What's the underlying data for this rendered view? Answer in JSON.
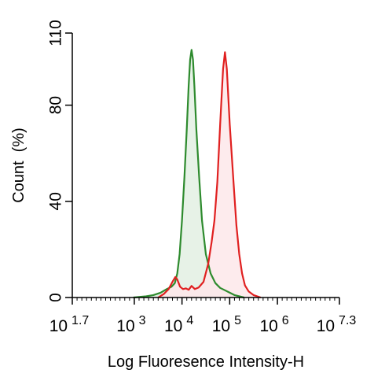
{
  "chart_data": {
    "type": "area",
    "xlabel": "Log Fluoresence Intensity-H",
    "ylabel": "Count  (%)",
    "x_scale": "log",
    "xlim_exponent": [
      1.7,
      7.3
    ],
    "ylim": [
      0,
      110
    ],
    "x_ticks": [
      {
        "base": "10",
        "exp": "1.7",
        "value_exp": 1.7
      },
      {
        "base": "10",
        "exp": "3",
        "value_exp": 3
      },
      {
        "base": "10",
        "exp": "4",
        "value_exp": 4
      },
      {
        "base": "10",
        "exp": "5",
        "value_exp": 5
      },
      {
        "base": "10",
        "exp": "6",
        "value_exp": 6
      },
      {
        "base": "10",
        "exp": "7.3",
        "value_exp": 7.3
      }
    ],
    "y_ticks": [
      0,
      40,
      80,
      110
    ],
    "grid": false,
    "series": [
      {
        "color": "#2e8b2e",
        "fill": "#e3f0e3",
        "points": [
          [
            2.98,
            0
          ],
          [
            3.25,
            0.5
          ],
          [
            3.4,
            1
          ],
          [
            3.55,
            2
          ],
          [
            3.68,
            3.5
          ],
          [
            3.78,
            4.5
          ],
          [
            3.85,
            6
          ],
          [
            3.9,
            10
          ],
          [
            3.95,
            18
          ],
          [
            4.0,
            32
          ],
          [
            4.05,
            50
          ],
          [
            4.1,
            70
          ],
          [
            4.14,
            88
          ],
          [
            4.17,
            99
          ],
          [
            4.2,
            103
          ],
          [
            4.23,
            99
          ],
          [
            4.26,
            88
          ],
          [
            4.3,
            70
          ],
          [
            4.36,
            50
          ],
          [
            4.42,
            32
          ],
          [
            4.5,
            18
          ],
          [
            4.6,
            10
          ],
          [
            4.7,
            6
          ],
          [
            4.8,
            4
          ],
          [
            4.9,
            3
          ],
          [
            5.0,
            2
          ],
          [
            5.1,
            1
          ],
          [
            5.3,
            0
          ]
        ]
      },
      {
        "color": "#e02020",
        "fill": "#fde8ea",
        "points": [
          [
            3.5,
            0
          ],
          [
            3.62,
            1.5
          ],
          [
            3.72,
            3.5
          ],
          [
            3.8,
            6.5
          ],
          [
            3.86,
            8.5
          ],
          [
            3.9,
            7.5
          ],
          [
            3.96,
            4.5
          ],
          [
            4.02,
            3.5
          ],
          [
            4.08,
            3.8
          ],
          [
            4.14,
            3.2
          ],
          [
            4.2,
            4.8
          ],
          [
            4.27,
            3.5
          ],
          [
            4.35,
            4.2
          ],
          [
            4.45,
            6.5
          ],
          [
            4.55,
            14
          ],
          [
            4.62,
            23
          ],
          [
            4.68,
            32
          ],
          [
            4.74,
            48
          ],
          [
            4.8,
            72
          ],
          [
            4.86,
            95
          ],
          [
            4.9,
            102
          ],
          [
            4.94,
            95
          ],
          [
            5.0,
            72
          ],
          [
            5.08,
            48
          ],
          [
            5.14,
            30
          ],
          [
            5.2,
            18
          ],
          [
            5.26,
            10
          ],
          [
            5.32,
            5
          ],
          [
            5.4,
            2.5
          ],
          [
            5.5,
            1
          ],
          [
            5.65,
            0
          ]
        ]
      }
    ]
  }
}
